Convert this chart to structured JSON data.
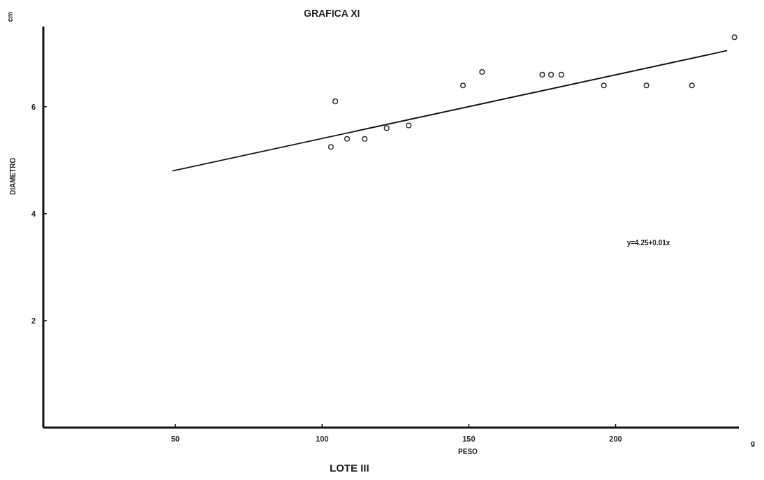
{
  "chart_data": {
    "type": "scatter",
    "title": "GRAFICA XI",
    "subtitle": "LOTE III",
    "xlabel": "PESO",
    "ylabel": "DIAMETRO",
    "annotations": [
      "cm",
      "g",
      "y=4.25+0.01x"
    ],
    "xlim": [
      5,
      242
    ],
    "ylim": [
      0,
      7.5
    ],
    "xticks": [
      50,
      100,
      150,
      200
    ],
    "yticks": [
      2,
      4,
      6
    ],
    "grid": false,
    "marker": "circle",
    "series": [
      {
        "color": "#333333",
        "x": [
          103,
          104.5,
          108.5,
          114.5,
          122,
          129.5,
          148,
          154.5,
          175,
          178,
          181.5,
          196,
          210.5,
          226,
          240.5
        ],
        "values": [
          5.25,
          6.1,
          5.4,
          5.4,
          5.6,
          5.65,
          6.4,
          6.65,
          6.6,
          6.6,
          6.6,
          6.4,
          6.4,
          6.4,
          7.3
        ]
      },
      {
        "type": "line",
        "color": "#111111",
        "line_style": "solid",
        "marker": "none",
        "x": [
          49,
          238
        ],
        "values": [
          4.8,
          7.05
        ]
      }
    ]
  }
}
